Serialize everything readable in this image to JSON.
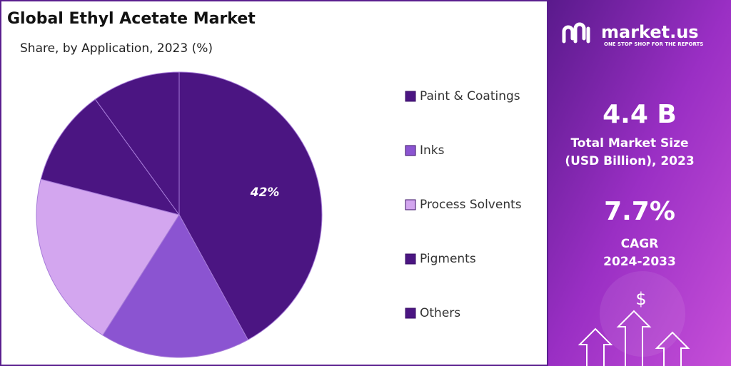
{
  "chart_data": {
    "type": "pie",
    "title": "Global Ethyl Acetate Market",
    "subtitle": "Share, by Application, 2023 (%)",
    "categories": [
      "Paint & Coatings",
      "Inks",
      "Process Solvents",
      "Pigments",
      "Others"
    ],
    "values": [
      42,
      17,
      20,
      11,
      10
    ],
    "value_labels": [
      "42%",
      null,
      null,
      null,
      null
    ],
    "colors": [
      "#4b1582",
      "#8b54d1",
      "#d3a6ef",
      "#4b1582",
      "#4b1582"
    ]
  },
  "panel": {
    "brand": "market.us",
    "tagline": "ONE STOP SHOP FOR THE REPORTS",
    "market_size": "4.4 B",
    "market_size_label_1": "Total Market Size",
    "market_size_label_2": "(USD Billion), 2023",
    "cagr": "7.7%",
    "cagr_label": "CAGR",
    "cagr_period": "2024-2033",
    "currency_icon": "$"
  }
}
